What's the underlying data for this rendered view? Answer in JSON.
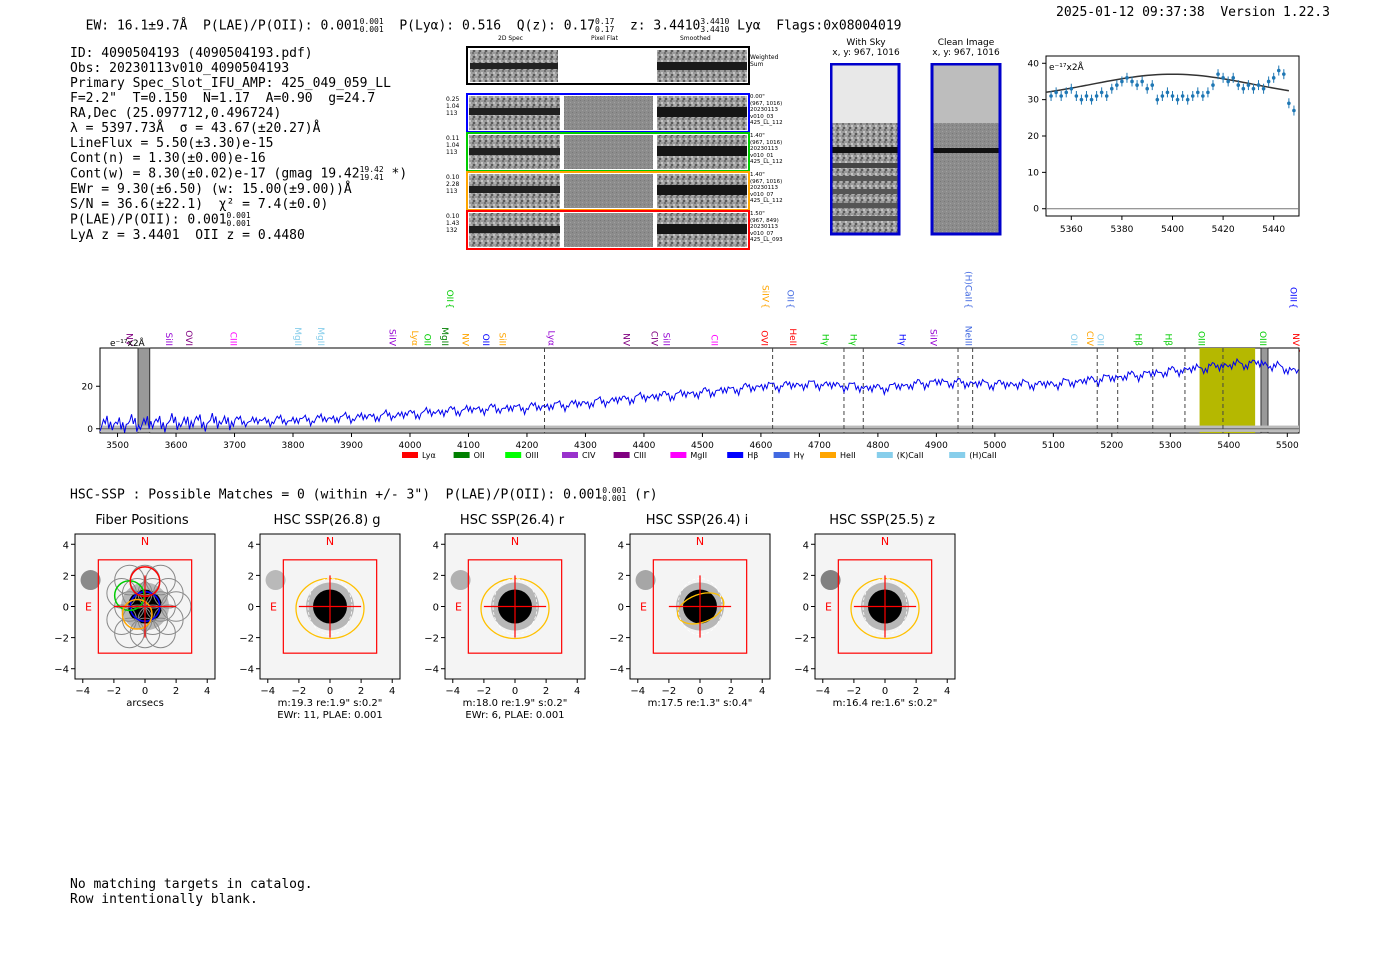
{
  "header": {
    "line1": "EW: 16.1±9.7Å  P(LAE)/P(OII): 0.001",
    "line1_sup": "0.001",
    "line1_sub": "0.001",
    "line1_b": "P(Lyα): 0.516  Q(z): 0.17",
    "qz_sup": "0.17",
    "qz_sub": "0.17",
    "z_text": "z: 3.4410",
    "z_sup": "3.4410",
    "z_sub": "3.4410",
    "z_tail": "Lyα  Flags:0x08004019",
    "datetime": "2025-01-12 09:37:38  Version 1.22.3"
  },
  "info": {
    "l1": "ID: 4090504193 (4090504193.pdf)",
    "l2": "Obs: 20230113v010_4090504193",
    "l3": "Primary Spec_Slot_IFU_AMP: 425_049_059_LL",
    "l4": "F=2.2\"  T=0.150  N=1.17  A=0.90  g=24.7",
    "l5": "RA,Dec (25.097712,0.496724)",
    "l6": "λ = 5397.73Å  σ = 43.67(±20.27)Å",
    "l7": "LineFlux = 5.50(±3.30)e-15",
    "l8": "Cont(n) = 1.30(±0.00)e-16",
    "l9": "Cont(w) = 8.30(±0.02)e-17 (gmag 19.42",
    "l9_sup": "19.42",
    "l9_sub": "19.41",
    "l9_tail": "*)",
    "l10": "EWr = 9.30(±6.50) (w: 15.00(±9.00))Å",
    "l11": "S/N = 36.6(±22.1)  χ² = 7.4(±0.0)",
    "l12": "P(LAE)/P(OII): 0.001",
    "l12_sup": "0.001",
    "l12_sub": "0.001",
    "l13": "LyA z = 3.4401  OII z = 0.4480"
  },
  "cutouts": {
    "headers": [
      "2D Spec",
      "Pixel Flat",
      "Smoothed"
    ],
    "weighted_label": "Weighted\nSum",
    "rows": [
      {
        "left": "0.25\n1.04\n113",
        "right": "0.00\"\n(967, 1016)\n20230113\nv010_03\n425_LL_112",
        "color": "#0000ff"
      },
      {
        "left": "0.11\n1.04\n113",
        "right": "1.40\"\n(967, 1016)\n20230113\nv010_01\n425_LL_112",
        "color": "#00cc00"
      },
      {
        "left": "0.10\n2.28\n113",
        "right": "1.40\"\n(967, 1016)\n20230113\nv010_07\n425_LL_112",
        "color": "#ffa500"
      },
      {
        "left": "0.10\n1.43\n132",
        "right": "1.50\"\n(967, 849)\n20230113\nv010_07\n425_LL_093",
        "color": "#ff0000"
      }
    ]
  },
  "sky": {
    "with_sky_title": "With Sky",
    "with_sky_sub": "x, y: 967, 1016",
    "clean_title": "Clean Image",
    "clean_sub": "x, y: 967, 1016"
  },
  "zoom_chart": {
    "unit_label": "e⁻¹⁷x2Å",
    "xticks": [
      "5360",
      "5380",
      "5400",
      "5420",
      "5440"
    ],
    "yticks": [
      "0",
      "10",
      "20",
      "30",
      "40"
    ]
  },
  "chart_data": [
    {
      "type": "scatter",
      "title": "",
      "xlabel": "",
      "ylabel": "e⁻¹⁷x2Å",
      "xlim": [
        5350,
        5450
      ],
      "ylim": [
        -2,
        42
      ],
      "x": [
        5352,
        5354,
        5356,
        5358,
        5360,
        5362,
        5364,
        5366,
        5368,
        5370,
        5372,
        5374,
        5376,
        5378,
        5380,
        5382,
        5384,
        5386,
        5388,
        5390,
        5392,
        5394,
        5396,
        5398,
        5400,
        5402,
        5404,
        5406,
        5408,
        5410,
        5412,
        5414,
        5416,
        5418,
        5420,
        5422,
        5424,
        5426,
        5428,
        5430,
        5432,
        5434,
        5436,
        5438,
        5440,
        5442,
        5444,
        5446,
        5448
      ],
      "y": [
        31,
        32,
        31,
        32,
        33,
        31,
        30,
        31,
        30,
        31,
        32,
        31,
        33,
        34,
        35,
        36,
        35,
        34,
        35,
        33,
        34,
        30,
        31,
        32,
        31,
        30,
        31,
        30,
        31,
        32,
        31,
        32,
        34,
        37,
        36,
        35,
        36,
        34,
        33,
        34,
        33,
        34,
        33,
        35,
        36,
        38,
        37,
        29,
        27
      ],
      "fit_peak": 37,
      "fit_center": 5400
    },
    {
      "type": "line",
      "title": "",
      "xlabel": "",
      "ylabel": "e⁻¹⁷x2Å",
      "xlim": [
        3470,
        5520
      ],
      "ylim": [
        -2,
        38
      ],
      "xticks": [
        "3500",
        "3600",
        "3700",
        "3800",
        "3900",
        "4000",
        "4100",
        "4200",
        "4300",
        "4400",
        "4500",
        "4600",
        "4700",
        "4800",
        "4900",
        "5000",
        "5100",
        "5200",
        "5300",
        "5400",
        "5500"
      ],
      "yticks": [
        "0",
        "20"
      ],
      "trend": [
        [
          3470,
          2
        ],
        [
          3600,
          3
        ],
        [
          3800,
          4
        ],
        [
          3950,
          6
        ],
        [
          4100,
          9
        ],
        [
          4200,
          10
        ],
        [
          4300,
          12
        ],
        [
          4400,
          15
        ],
        [
          4500,
          17
        ],
        [
          4600,
          20
        ],
        [
          4700,
          21
        ],
        [
          4800,
          19
        ],
        [
          4900,
          22
        ],
        [
          5000,
          21
        ],
        [
          5100,
          21
        ],
        [
          5200,
          24
        ],
        [
          5300,
          27
        ],
        [
          5400,
          30
        ],
        [
          5450,
          31
        ],
        [
          5520,
          27
        ]
      ],
      "highlight_band": [
        5350,
        5445
      ],
      "emission_lines": [
        {
          "name": "NV",
          "x": 3510,
          "color": "#800080",
          "up": false
        },
        {
          "name": "SiII",
          "x": 3578,
          "color": "#9400d3",
          "up": false
        },
        {
          "name": "OVI",
          "x": 3612,
          "color": "#800080",
          "up": false
        },
        {
          "name": "CIII",
          "x": 3688,
          "color": "#ff00ff",
          "up": false
        },
        {
          "name": "MgII",
          "x": 3798,
          "color": "#87ceeb",
          "up": false
        },
        {
          "name": "MgII",
          "x": 3838,
          "color": "#87ceeb",
          "up": false
        },
        {
          "name": "SiIV",
          "x": 3960,
          "color": "#9400d3",
          "up": false
        },
        {
          "name": "Lyα",
          "x": 3998,
          "color": "#ffa500",
          "up": false
        },
        {
          "name": "OII",
          "x": 4020,
          "color": "#00cc00",
          "up": false
        },
        {
          "name": "MgII",
          "x": 4050,
          "color": "#008000",
          "up": false
        },
        {
          "name": "OII",
          "x": 4058,
          "color": "#00cc00",
          "up": true
        },
        {
          "name": "NV",
          "x": 4085,
          "color": "#ffa500",
          "up": false
        },
        {
          "name": "OII",
          "x": 4120,
          "color": "#0000ff",
          "up": false
        },
        {
          "name": "SiII",
          "x": 4148,
          "color": "#ffa500",
          "up": false
        },
        {
          "name": "Lyα",
          "x": 4232,
          "color": "#9400d3",
          "up": false
        },
        {
          "name": "NV",
          "x": 4360,
          "color": "#800080",
          "up": false
        },
        {
          "name": "CIV",
          "x": 4408,
          "color": "#800080",
          "up": false
        },
        {
          "name": "SiII",
          "x": 4428,
          "color": "#9400d3",
          "up": false
        },
        {
          "name": "CII",
          "x": 4510,
          "color": "#ff00ff",
          "up": false
        },
        {
          "name": "OVI",
          "x": 4596,
          "color": "#ff0000",
          "up": false
        },
        {
          "name": "SiIV",
          "x": 4598,
          "color": "#ffa500",
          "up": true
        },
        {
          "name": "OII",
          "x": 4640,
          "color": "#4169e1",
          "up": true
        },
        {
          "name": "HeII",
          "x": 4645,
          "color": "#ff0000",
          "up": false
        },
        {
          "name": "Hγ",
          "x": 4700,
          "color": "#00cc00",
          "up": false
        },
        {
          "name": "Hγ",
          "x": 4748,
          "color": "#00cc00",
          "up": false
        },
        {
          "name": "Hγ",
          "x": 4832,
          "color": "#0000ff",
          "up": false
        },
        {
          "name": "SiIV",
          "x": 4885,
          "color": "#9400d3",
          "up": false
        },
        {
          "name": "NeIII",
          "x": 4945,
          "color": "#4169e1",
          "up": false
        },
        {
          "name": "(H)CaII",
          "x": 4945,
          "color": "#4169e1",
          "up": true
        },
        {
          "name": "OII",
          "x": 5125,
          "color": "#87ceeb",
          "up": false
        },
        {
          "name": "CIV",
          "x": 5152,
          "color": "#ffa500",
          "up": false
        },
        {
          "name": "OII",
          "x": 5170,
          "color": "#87ceeb",
          "up": false
        },
        {
          "name": "Hβ",
          "x": 5235,
          "color": "#00cc00",
          "up": false
        },
        {
          "name": "Hβ",
          "x": 5287,
          "color": "#00cc00",
          "up": false
        },
        {
          "name": "OIII",
          "x": 5343,
          "color": "#00cc00",
          "up": false
        },
        {
          "name": "OIII",
          "x": 5448,
          "color": "#00cc00",
          "up": false
        },
        {
          "name": "OIII",
          "x": 5500,
          "color": "#0000ff",
          "up": true
        },
        {
          "name": "NV",
          "x": 5505,
          "color": "#ff0000",
          "up": false
        }
      ],
      "dashed_lines": [
        4230,
        4620,
        4742,
        4775,
        4937,
        4962,
        5175,
        5210,
        5270,
        5325,
        5390
      ],
      "legend": [
        {
          "name": "Lyα",
          "color": "#ff0000"
        },
        {
          "name": "OII",
          "color": "#008000"
        },
        {
          "name": "OIII",
          "color": "#00ff00"
        },
        {
          "name": "CIV",
          "color": "#9932cc"
        },
        {
          "name": "CIII",
          "color": "#800080"
        },
        {
          "name": "MgII",
          "color": "#ff00ff"
        },
        {
          "name": "Hβ",
          "color": "#0000ff"
        },
        {
          "name": "Hγ",
          "color": "#4169e1"
        },
        {
          "name": "HeII",
          "color": "#ffa500"
        },
        {
          "name": "(K)CaII",
          "color": "#87ceeb"
        },
        {
          "name": "(H)CaII",
          "color": "#87ceeb"
        }
      ]
    }
  ],
  "hsc": {
    "title": "HSC-SSP : Possible Matches = 0 (within +/- 3\")  P(LAE)/P(OII): 0.001",
    "title_sup": "0.001",
    "title_sub": "0.001",
    "title_tail": "(r)",
    "panels": [
      {
        "title": "Fiber Positions",
        "cap1": "arcsecs",
        "cap2": ""
      },
      {
        "title": "HSC SSP(26.8) g",
        "cap1": "m:19.3   re:1.9\"  s:0.2\"",
        "cap2": "EWr: 11, PLAE: 0.001"
      },
      {
        "title": "HSC SSP(26.4) r",
        "cap1": "m:18.0   re:1.9\"  s:0.2\"",
        "cap2": "EWr: 6, PLAE: 0.001"
      },
      {
        "title": "HSC SSP(26.4) i",
        "cap1": "m:17.5   re:1.3\"  s:0.4\"",
        "cap2": ""
      },
      {
        "title": "HSC SSP(25.5) z",
        "cap1": "m:16.4   re:1.6\"  s:0.2\"",
        "cap2": ""
      }
    ],
    "xticks": [
      "−4",
      "−2",
      "0",
      "2",
      "4"
    ],
    "yticks": [
      "4",
      "2",
      "0",
      "−2",
      "−4"
    ],
    "north": "N",
    "east": "E"
  },
  "footer": {
    "l1": "No matching targets in catalog.",
    "l2": "Row intentionally blank."
  }
}
